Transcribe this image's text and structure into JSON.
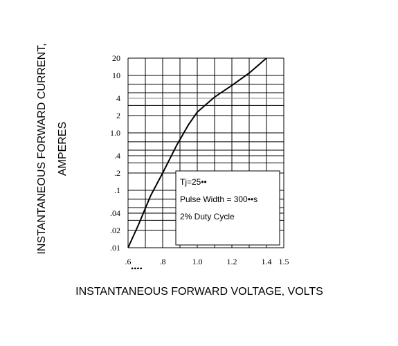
{
  "chart_data": {
    "type": "line",
    "title": "",
    "xlabel": "INSTANTANEOUS FORWARD VOLTAGE, VOLTS",
    "ylabel": [
      "INSTANTANEOUS FORWARD CURRENT,",
      "AMPERES"
    ],
    "xlim": [
      0.6,
      1.5
    ],
    "ylim": [
      0.01,
      20
    ],
    "y_scale": "log",
    "grid": true,
    "x_ticks": [
      {
        "value": 0.6,
        "label": ".6"
      },
      {
        "value": 0.8,
        "label": ".8"
      },
      {
        "value": 1.0,
        "label": "1.0"
      },
      {
        "value": 1.2,
        "label": "1.2"
      },
      {
        "value": 1.4,
        "label": "1.4"
      },
      {
        "value": 1.5,
        "label": "1.5"
      }
    ],
    "x_tick_extra": "••••",
    "y_ticks": [
      {
        "value": 20,
        "label": "20"
      },
      {
        "value": 10,
        "label": "10"
      },
      {
        "value": 4,
        "label": "4"
      },
      {
        "value": 2,
        "label": "2"
      },
      {
        "value": 1,
        "label": "1.0"
      },
      {
        "value": 0.4,
        "label": ".4"
      },
      {
        "value": 0.2,
        "label": ".2"
      },
      {
        "value": 0.1,
        "label": ".1"
      },
      {
        "value": 0.04,
        "label": ".04"
      },
      {
        "value": 0.02,
        "label": ".02"
      },
      {
        "value": 0.01,
        "label": ".01"
      }
    ],
    "series": [
      {
        "x": [
          0.6,
          0.66,
          0.73,
          0.8,
          0.88,
          0.95,
          1.0,
          1.1,
          1.2,
          1.3,
          1.4
        ],
        "y": [
          0.01,
          0.025,
          0.08,
          0.2,
          0.6,
          1.4,
          2.3,
          4.2,
          6.7,
          11,
          20
        ]
      }
    ],
    "annotation": {
      "lines": [
        "Tj=25••",
        "Pulse Width = 300••s",
        "2% Duty Cycle"
      ]
    }
  }
}
